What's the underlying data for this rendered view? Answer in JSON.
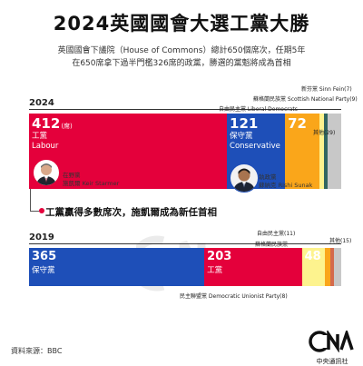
{
  "title": "2024英國國會大選工黨大勝",
  "description": [
    "英國國會下議院（House of Commons）總計650個席次，任期5年",
    "在650席拿下過半門檻326席的政黨，勝選的黨魁將成為首相"
  ],
  "headline": "工黨贏得多數席次，施凱爾成為新任首相",
  "source": "資料來源：BBC",
  "logo": {
    "mark": "CNA",
    "sub": "中央通訊社"
  },
  "colors": {
    "labour": "#e4003b",
    "conservative": "#1e4fb8",
    "libdem": "#faa61a",
    "snp": "#fdf38e",
    "sinnfein": "#326760",
    "other": "#c8c8c8",
    "dup": "#d46a4c"
  },
  "leaders": {
    "labour": {
      "role": "在野黨",
      "name": "施凱爾 Keir Starmer"
    },
    "conservative": {
      "role": "執政黨",
      "name": "蘇納克 Rishi Sunak"
    }
  },
  "chart_data": [
    {
      "type": "bar",
      "title": "2024",
      "total": 650,
      "series": [
        {
          "name": "工黨 Labour",
          "value": 412,
          "label": "412",
          "unit": "(席)",
          "party_zh": "工黨",
          "party_en": "Labour",
          "color": "#e4003b"
        },
        {
          "name": "保守黨 Conservative",
          "value": 121,
          "label": "121",
          "party_zh": "保守黨",
          "party_en": "Conservative",
          "color": "#1e4fb8"
        },
        {
          "name": "自由民主黨 Liberal Democrats",
          "value": 72,
          "label": "72",
          "color": "#faa61a"
        },
        {
          "name": "蘇格蘭民族黨 Scottish National Party",
          "value": 9,
          "color": "#fdf38e"
        },
        {
          "name": "新芬黨 Sinn Fein",
          "value": 7,
          "color": "#326760"
        },
        {
          "name": "其他",
          "value": 29,
          "color": "#c8c8c8"
        }
      ],
      "small_labels": {
        "sinnfein": "新芬黨 Sinn Fein(7)",
        "snp": "蘇格蘭民族黨 Scottish National Party(9)",
        "libdem": "自由民主黨 Liberal Democrats",
        "other": "其他(29)"
      }
    },
    {
      "type": "bar",
      "title": "2019",
      "total": 650,
      "series": [
        {
          "name": "保守黨",
          "value": 365,
          "label": "365",
          "party_zh": "保守黨",
          "color": "#1e4fb8"
        },
        {
          "name": "工黨",
          "value": 203,
          "label": "203",
          "party_zh": "工黨",
          "color": "#e4003b"
        },
        {
          "name": "蘇格蘭民族黨",
          "value": 48,
          "label": "48",
          "color": "#fdf38e"
        },
        {
          "name": "自由民主黨",
          "value": 11,
          "color": "#faa61a"
        },
        {
          "name": "民主聯盟黨 Democratic Unionist Party",
          "value": 8,
          "color": "#d46a4c"
        },
        {
          "name": "其他",
          "value": 15,
          "color": "#c8c8c8"
        }
      ],
      "small_labels": {
        "libdem": "自由民主黨(11)",
        "snp": "蘇格蘭民族黨",
        "other": "其他(15)",
        "dup": "民主聯盟黨 Democratic Unionist Party(8)"
      }
    }
  ]
}
